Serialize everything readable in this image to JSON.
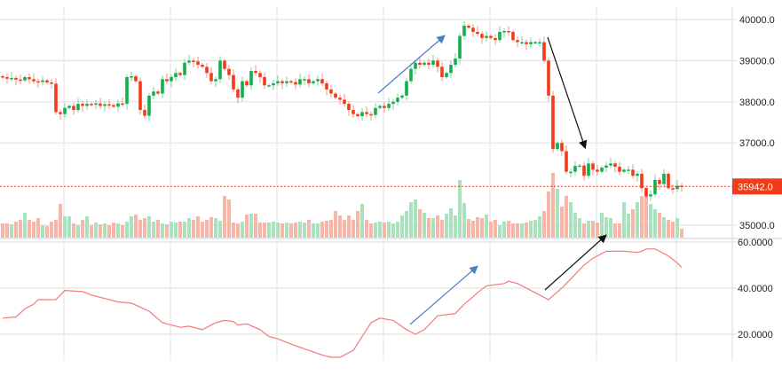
{
  "chart_data": {
    "type": "candlestick",
    "title": "",
    "price_axis": {
      "ticks": [
        "40000.0",
        "39000.0",
        "38000.0",
        "37000.0",
        "35000.0"
      ],
      "tick_values": [
        40000,
        39000,
        38000,
        37000,
        35000
      ],
      "range": [
        34700,
        40500
      ]
    },
    "last_price": {
      "label": "35942.0",
      "value": 35942
    },
    "indicator_axis": {
      "ticks": [
        "60.0000",
        "40.0000",
        "20.0000"
      ],
      "tick_values": [
        60,
        40,
        20
      ],
      "range": [
        3,
        62
      ]
    },
    "colors": {
      "up": "#12b04c",
      "down": "#f23b1b",
      "vol_up": "#a9e2bd",
      "vol_down": "#f8b6a8",
      "indicator": "#f47a7a",
      "last_price_bg": "#f23b1b",
      "arrow_blue": "#4a7fc1",
      "arrow_black": "#111111"
    },
    "first_open": 38620,
    "close": [
      38600,
      38560,
      38580,
      38540,
      38520,
      38600,
      38550,
      38500,
      38480,
      38520,
      38470,
      38440,
      37750,
      37700,
      37850,
      37900,
      37800,
      37950,
      37900,
      37950,
      37930,
      37960,
      37900,
      37940,
      37920,
      37880,
      37960,
      37950,
      38600,
      38620,
      38500,
      37800,
      37660,
      38150,
      38250,
      38200,
      38550,
      38500,
      38600,
      38700,
      38650,
      38950,
      39000,
      38980,
      38900,
      38850,
      38700,
      38500,
      38550,
      39000,
      38800,
      38650,
      38300,
      38100,
      38500,
      38400,
      38750,
      38700,
      38600,
      38400,
      38400,
      38450,
      38500,
      38450,
      38500,
      38480,
      38420,
      38550,
      38550,
      38450,
      38500,
      38550,
      38450,
      38300,
      38200,
      38100,
      38050,
      37950,
      37800,
      37700,
      37650,
      37750,
      37700,
      37680,
      37850,
      37900,
      37850,
      37950,
      38000,
      38100,
      38150,
      38500,
      38800,
      38950,
      38900,
      38950,
      38900,
      39000,
      38850,
      38600,
      38700,
      38900,
      39050,
      39600,
      39850,
      39800,
      39700,
      39650,
      39550,
      39600,
      39550,
      39500,
      39700,
      39720,
      39700,
      39500,
      39450,
      39450,
      39400,
      39450,
      39450,
      39450,
      39000,
      38150,
      36850,
      37000,
      36800,
      36300,
      36300,
      36440,
      36450,
      36200,
      36500,
      36350,
      36300,
      36400,
      36450,
      36500,
      36420,
      36300,
      36350,
      36350,
      36200,
      36250,
      35900,
      35700,
      35750,
      36100,
      36000,
      36250,
      35900,
      35880,
      35960,
      35942
    ],
    "volume": [
      16,
      16,
      15,
      18,
      20,
      28,
      20,
      18,
      22,
      14,
      13,
      18,
      20,
      38,
      24,
      24,
      16,
      14,
      20,
      24,
      14,
      17,
      15,
      16,
      14,
      17,
      16,
      14,
      18,
      24,
      26,
      20,
      22,
      24,
      18,
      20,
      16,
      15,
      18,
      17,
      18,
      18,
      22,
      20,
      24,
      18,
      20,
      23,
      22,
      19,
      47,
      43,
      17,
      16,
      18,
      26,
      27,
      27,
      17,
      17,
      17,
      18,
      17,
      16,
      17,
      16,
      17,
      18,
      17,
      20,
      16,
      16,
      18,
      19,
      20,
      30,
      25,
      20,
      25,
      20,
      30,
      38,
      20,
      16,
      17,
      18,
      17,
      18,
      16,
      18,
      25,
      30,
      40,
      43,
      32,
      28,
      22,
      22,
      25,
      20,
      27,
      33,
      25,
      65,
      39,
      21,
      19,
      23,
      22,
      26,
      18,
      20,
      14,
      18,
      19,
      16,
      16,
      16,
      17,
      19,
      20,
      24,
      30,
      52,
      73,
      55,
      35,
      47,
      40,
      28,
      22,
      16,
      19,
      19,
      17,
      28,
      23,
      22,
      16,
      16,
      40,
      27,
      32,
      40,
      47,
      56,
      38,
      32,
      28,
      23,
      20,
      18,
      22,
      10
    ],
    "indicator_knots": [
      [
        0,
        27
      ],
      [
        3,
        27.5
      ],
      [
        5,
        31
      ],
      [
        7,
        33
      ],
      [
        8,
        35
      ],
      [
        12,
        35
      ],
      [
        14,
        39
      ],
      [
        18,
        38.5
      ],
      [
        20,
        37
      ],
      [
        26,
        34
      ],
      [
        29,
        33.5
      ],
      [
        33,
        30
      ],
      [
        36,
        25
      ],
      [
        40,
        23
      ],
      [
        42,
        23.5
      ],
      [
        45,
        22
      ],
      [
        48,
        25
      ],
      [
        50,
        26
      ],
      [
        52,
        25.5
      ],
      [
        53,
        24
      ],
      [
        55,
        24.5
      ],
      [
        58,
        22
      ],
      [
        60,
        19
      ],
      [
        62,
        18
      ],
      [
        66,
        15
      ],
      [
        69,
        13
      ],
      [
        72,
        11
      ],
      [
        74,
        10
      ],
      [
        76,
        10
      ],
      [
        79,
        13
      ],
      [
        80,
        16
      ],
      [
        82,
        22
      ],
      [
        83,
        25
      ],
      [
        85,
        27
      ],
      [
        88,
        26
      ],
      [
        91,
        22
      ],
      [
        93,
        20
      ],
      [
        95,
        22
      ],
      [
        98,
        28
      ],
      [
        102,
        29
      ],
      [
        104,
        33
      ],
      [
        107,
        38
      ],
      [
        109,
        41
      ],
      [
        113,
        42
      ],
      [
        114,
        43
      ],
      [
        116,
        42
      ],
      [
        120,
        38
      ],
      [
        123,
        35
      ],
      [
        126,
        40
      ],
      [
        128,
        44
      ],
      [
        131,
        50
      ],
      [
        133,
        53
      ],
      [
        136,
        56
      ],
      [
        140,
        56
      ],
      [
        143,
        55.5
      ],
      [
        144,
        56
      ],
      [
        145,
        57
      ],
      [
        147,
        57
      ],
      [
        150,
        54
      ],
      [
        152,
        51
      ],
      [
        153,
        49
      ]
    ]
  }
}
